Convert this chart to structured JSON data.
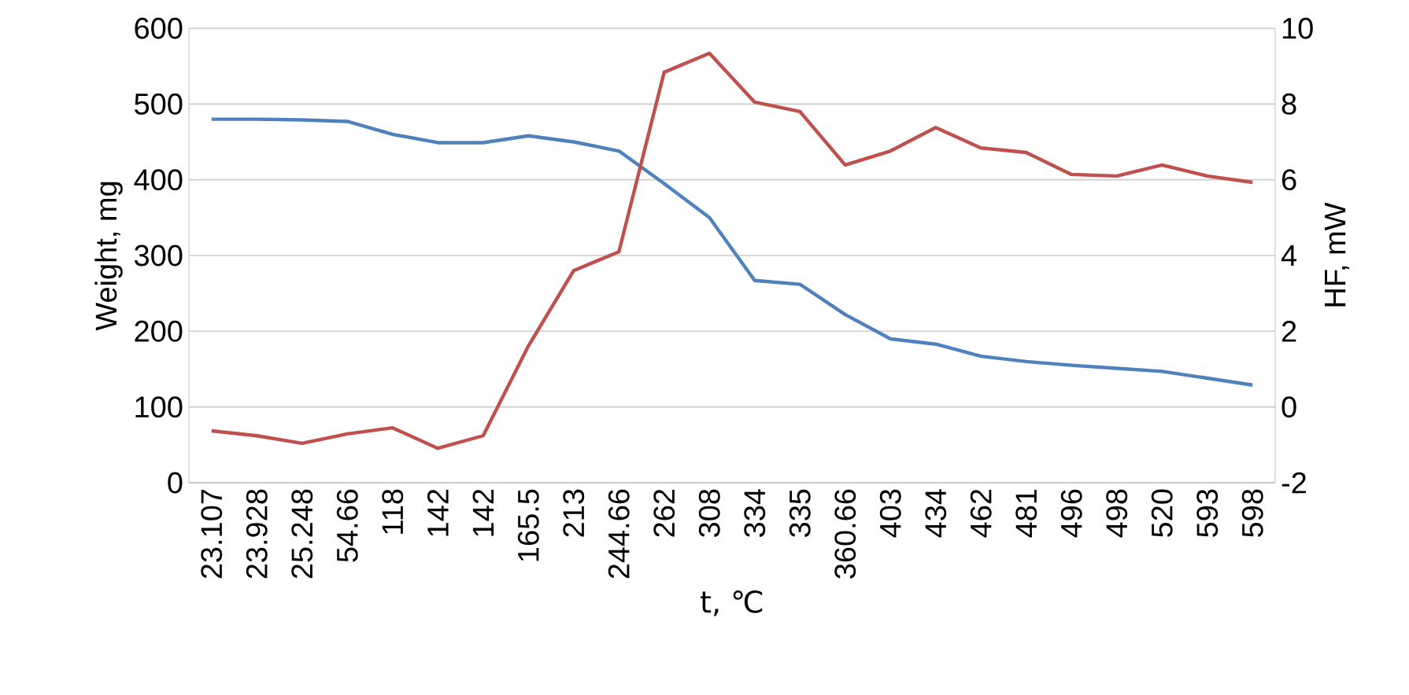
{
  "chart_data": {
    "type": "line",
    "xlabel": "t, ℃",
    "ylabel": "Weight, mg",
    "y2label": "HF, mW",
    "categories": [
      "23.107",
      "23.928",
      "25.248",
      "54.66",
      "118",
      "142",
      "142",
      "165.5",
      "213",
      "244.66",
      "262",
      "308",
      "334",
      "335",
      "360.66",
      "403",
      "434",
      "462",
      "481",
      "496",
      "498",
      "520",
      "593",
      "598"
    ],
    "series": [
      {
        "color": "#4f81bd",
        "values": [
          480,
          480,
          479,
          477,
          460,
          449,
          449,
          458,
          450,
          438,
          395,
          350,
          267,
          262,
          222,
          190,
          183,
          167,
          160,
          155,
          151,
          147,
          138,
          129
        ]
      },
      {
        "color": "#c0504d",
        "axis": "y2",
        "values": [
          -0.63,
          -0.76,
          -0.96,
          -0.71,
          -0.55,
          -1.09,
          -0.76,
          1.61,
          3.6,
          4.1,
          8.84,
          9.34,
          8.05,
          7.8,
          6.39,
          6.76,
          7.38,
          6.84,
          6.72,
          6.14,
          6.1,
          6.39,
          6.1,
          5.93
        ]
      }
    ],
    "ylim": [
      0,
      600
    ],
    "yticks": [
      0,
      100,
      200,
      300,
      400,
      500,
      600
    ],
    "y2lim": [
      -2,
      10
    ],
    "y2ticks": [
      -2,
      0,
      2,
      4,
      6,
      8,
      10
    ],
    "grid": "y",
    "marker": "none",
    "line_style": "solid"
  }
}
